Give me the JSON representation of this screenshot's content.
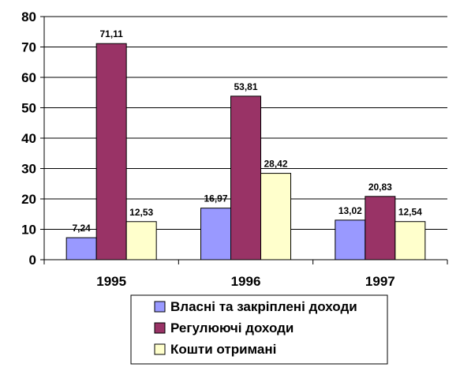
{
  "chart_data": {
    "type": "bar",
    "categories": [
      "1995",
      "1996",
      "1997"
    ],
    "series": [
      {
        "name": "Власні та закріплені доходи",
        "values": [
          7.24,
          16.97,
          13.02
        ],
        "labels": [
          "7,24",
          "16,97",
          "13,02"
        ],
        "color": "#9999ff"
      },
      {
        "name": "Регулюючі доходи",
        "values": [
          71.11,
          53.81,
          20.83
        ],
        "labels": [
          "71,11",
          "53,81",
          "20,83"
        ],
        "color": "#993366"
      },
      {
        "name": "Кошти отримані",
        "values": [
          12.53,
          28.42,
          12.54
        ],
        "labels": [
          "12,53",
          "28,42",
          "12,54"
        ],
        "color": "#ffffcc"
      }
    ],
    "ylim": [
      0,
      80
    ],
    "yticks": [
      "0",
      "10",
      "20",
      "30",
      "40",
      "50",
      "60",
      "70",
      "80"
    ],
    "grid": true,
    "legend_position": "bottom-center"
  }
}
